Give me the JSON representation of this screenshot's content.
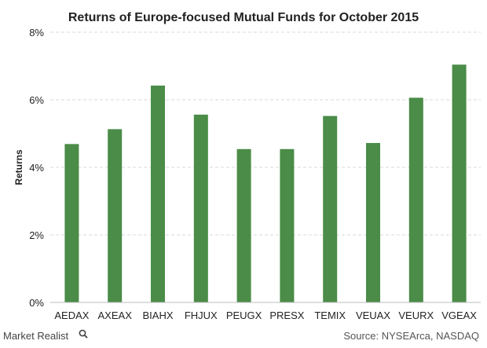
{
  "chart_data": {
    "type": "bar",
    "title": "Returns of Europe-focused Mutual Funds for October 2015",
    "xlabel": "",
    "ylabel": "Returns",
    "categories": [
      "AEDAX",
      "AXEAX",
      "BIAHX",
      "FHJUX",
      "PEUGX",
      "PRESX",
      "TEMIX",
      "VEUAX",
      "VEURX",
      "VGEAX"
    ],
    "values": [
      4.69,
      5.13,
      6.42,
      5.56,
      4.54,
      4.54,
      5.52,
      4.72,
      6.06,
      7.04
    ],
    "ylim": [
      0,
      8
    ],
    "yticks": [
      0,
      2,
      4,
      6,
      8
    ],
    "ytick_labels": [
      "0%",
      "2%",
      "4%",
      "6%",
      "8%"
    ],
    "grid": true,
    "bar_color": "#4a8c48"
  },
  "footer": {
    "brand": "Market Realist",
    "source": "Source: NYSEArca, NASDAQ"
  },
  "icons": {
    "brand_icon": "magnifier-icon"
  }
}
